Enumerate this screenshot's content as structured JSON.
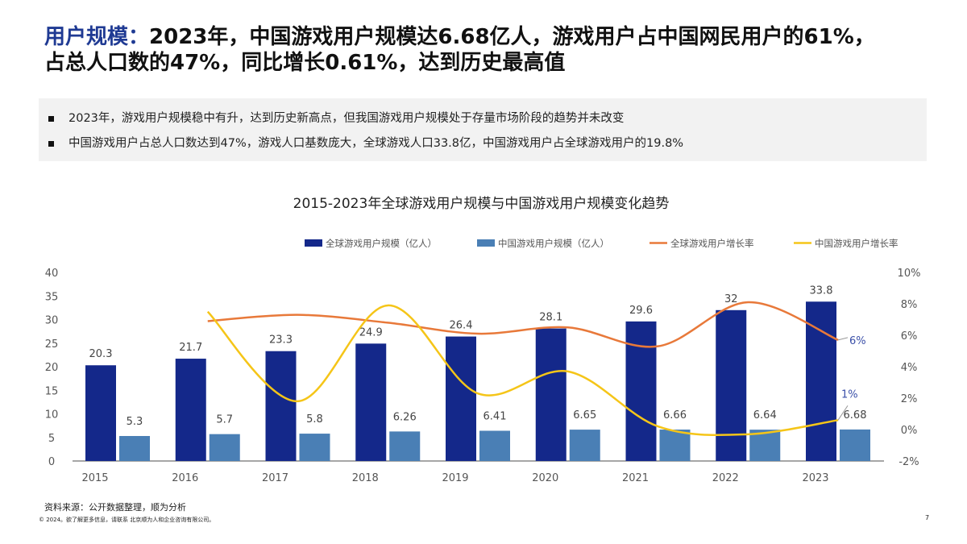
{
  "title": {
    "highlight": "用户规模：",
    "line1": "2023年，中国游戏用户规模达6.68亿人，游戏用户占中国网民用户的61%，",
    "line2": "占总人口数的47%，同比增长0.61%，达到历史最高值"
  },
  "bullets": [
    "2023年，游戏用户规模稳中有升，达到历史新高点，但我国游戏用户规模处于存量市场阶段的趋势并未改变",
    "中国游戏用户占总人口数达到47%，游戏人口基数庞大，全球游戏人口33.8亿，中国游戏用户占全球游戏用户的19.8%"
  ],
  "footer": {
    "source": "资料来源：公开数据整理，顺为分析",
    "copyright": "© 2024。欲了解更多信息，请联系 北京顺为人和企业咨询有限公司。",
    "page": "7"
  },
  "chart_data": {
    "type": "bar+line",
    "title": "2015-2023年全球游戏用户规模与中国游戏用户规模变化趋势",
    "categories": [
      "2015",
      "2016",
      "2017",
      "2018",
      "2019",
      "2020",
      "2021",
      "2022",
      "2023"
    ],
    "y_left": {
      "range": [
        0,
        40
      ],
      "ticks": [
        "0",
        "5",
        "10",
        "15",
        "20",
        "25",
        "30",
        "35",
        "40"
      ]
    },
    "y_right": {
      "range": [
        -2,
        10
      ],
      "ticks": [
        "-2%",
        "0%",
        "2%",
        "4%",
        "6%",
        "8%",
        "10%"
      ]
    },
    "legend_position": "top-right",
    "series": [
      {
        "name": "全球游戏用户规模（亿人）",
        "type": "bar",
        "axis": "left",
        "color": "#14288a",
        "values": [
          20.3,
          21.7,
          23.3,
          24.9,
          26.4,
          28.1,
          29.6,
          32,
          33.8
        ],
        "labels": [
          "20.3",
          "21.7",
          "23.3",
          "24.9",
          "26.4",
          "28.1",
          "29.6",
          "32",
          "33.8"
        ]
      },
      {
        "name": "中国游戏用户规模（亿人）",
        "type": "bar",
        "axis": "left",
        "color": "#4a7fb5",
        "values": [
          5.3,
          5.7,
          5.8,
          6.26,
          6.41,
          6.65,
          6.66,
          6.64,
          6.68
        ],
        "labels": [
          "5.3",
          "5.7",
          "5.8",
          "6.26",
          "6.41",
          "6.65",
          "6.66",
          "6.64",
          "6.68"
        ]
      },
      {
        "name": "全球游戏用户增长率",
        "type": "line",
        "axis": "right",
        "color": "#e8793a",
        "values": [
          null,
          6.9,
          7.3,
          6.8,
          6.1,
          6.5,
          5.3,
          8.1,
          5.7
        ],
        "end_label": "6%"
      },
      {
        "name": "中国游戏用户增长率",
        "type": "line",
        "axis": "right",
        "color": "#f5c518",
        "values": [
          null,
          7.5,
          1.8,
          7.9,
          2.3,
          3.7,
          0.2,
          -0.3,
          0.6
        ],
        "end_label": "1%"
      }
    ],
    "label_color": "#3a4fa8"
  }
}
